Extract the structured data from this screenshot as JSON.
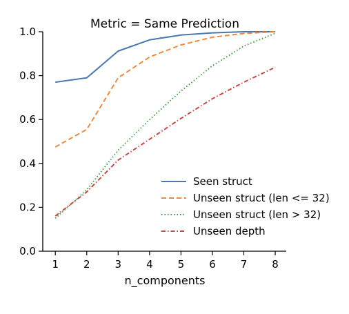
{
  "chart_data": {
    "type": "line",
    "title": "Metric = Same Prediction",
    "xlabel": "n_components",
    "ylabel": "",
    "x": [
      1,
      2,
      3,
      4,
      5,
      6,
      7,
      8
    ],
    "xlim": [
      0.6,
      8.35
    ],
    "ylim": [
      0.0,
      1.0
    ],
    "xticks": [
      "1",
      "2",
      "3",
      "4",
      "5",
      "6",
      "7",
      "8"
    ],
    "yticks": [
      "0.0",
      "0.2",
      "0.4",
      "0.6",
      "0.8",
      "1.0"
    ],
    "grid": false,
    "legend_position": "lower-right",
    "series": [
      {
        "name": "Seen struct",
        "color": "#4878b0",
        "dash": "solid",
        "values": [
          0.77,
          0.79,
          0.912,
          0.963,
          0.985,
          0.995,
          1.0,
          1.0
        ]
      },
      {
        "name": "Unseen struct (len <= 32)",
        "color": "#ee8a3c",
        "dash": "dashed",
        "values": [
          0.475,
          0.555,
          0.79,
          0.885,
          0.94,
          0.975,
          0.992,
          1.0
        ]
      },
      {
        "name": "Unseen struct (len > 32)",
        "color": "#3f9e3f",
        "dash": "dotted",
        "values": [
          0.15,
          0.28,
          0.46,
          0.6,
          0.73,
          0.845,
          0.935,
          0.993
        ]
      },
      {
        "name": "Unseen depth",
        "color": "#c94642",
        "dash": "dashdot",
        "values": [
          0.16,
          0.27,
          0.415,
          0.51,
          0.605,
          0.695,
          0.77,
          0.838
        ]
      }
    ]
  }
}
